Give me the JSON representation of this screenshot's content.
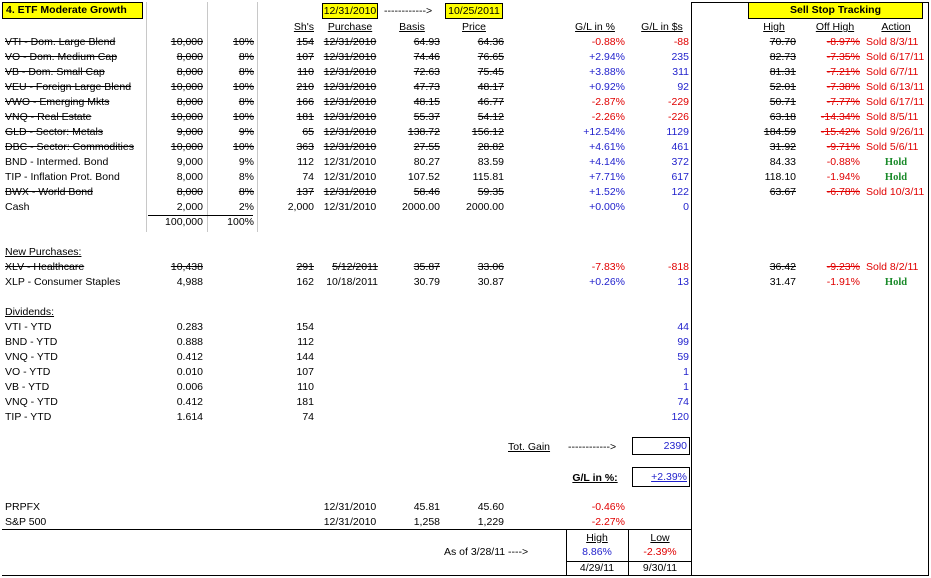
{
  "title": "4. ETF Moderate Growth",
  "start_date": "12/31/2010",
  "arrow": "------------>",
  "end_date": "10/25/2011",
  "sell_stop_title": "Sell Stop Tracking",
  "headers": {
    "shares": "Sh's",
    "purchase": "Purchase",
    "basis": "Basis",
    "price": "Price",
    "gl_pct": "G/L in %",
    "gl_usd": "G/L in $s",
    "high": "High",
    "off_high": "Off High",
    "action": "Action"
  },
  "holdings": [
    {
      "name": "VTI - Dom. Large Blend",
      "amount": "10,000",
      "pct": "10%",
      "shares": "154",
      "purchase": "12/31/2010",
      "basis": "64.93",
      "price": "64.36",
      "gl_pct": "-0.88%",
      "gl_usd": "-88",
      "high": "70.70",
      "off_high": "-8.97%",
      "action": "Sold 8/3/11",
      "struck": true
    },
    {
      "name": "VO - Dom. Medium Cap",
      "amount": "8,000",
      "pct": "8%",
      "shares": "107",
      "purchase": "12/31/2010",
      "basis": "74.46",
      "price": "76.65",
      "gl_pct": "+2.94%",
      "gl_usd": "235",
      "high": "82.73",
      "off_high": "-7.35%",
      "action": "Sold 6/17/11",
      "struck": true
    },
    {
      "name": "VB - Dom. Small Cap",
      "amount": "8,000",
      "pct": "8%",
      "shares": "110",
      "purchase": "12/31/2010",
      "basis": "72.63",
      "price": "75.45",
      "gl_pct": "+3.88%",
      "gl_usd": "311",
      "high": "81.31",
      "off_high": "-7.21%",
      "action": "Sold 6/7/11",
      "struck": true
    },
    {
      "name": "VEU - Foreign Large Blend",
      "amount": "10,000",
      "pct": "10%",
      "shares": "210",
      "purchase": "12/31/2010",
      "basis": "47.73",
      "price": "48.17",
      "gl_pct": "+0.92%",
      "gl_usd": "92",
      "high": "52.01",
      "off_high": "-7.38%",
      "action": "Sold 6/13/11",
      "struck": true
    },
    {
      "name": "VWO - Emerging Mkts",
      "amount": "8,000",
      "pct": "8%",
      "shares": "166",
      "purchase": "12/31/2010",
      "basis": "48.15",
      "price": "46.77",
      "gl_pct": "-2.87%",
      "gl_usd": "-229",
      "high": "50.71",
      "off_high": "-7.77%",
      "action": "Sold 6/17/11",
      "struck": true
    },
    {
      "name": "VNQ - Real Estate",
      "amount": "10,000",
      "pct": "10%",
      "shares": "181",
      "purchase": "12/31/2010",
      "basis": "55.37",
      "price": "54.12",
      "gl_pct": "-2.26%",
      "gl_usd": "-226",
      "high": "63.18",
      "off_high": "-14.34%",
      "action": "Sold 8/5/11",
      "struck": true
    },
    {
      "name": "GLD - Sector: Metals",
      "amount": "9,000",
      "pct": "9%",
      "shares": "65",
      "purchase": "12/31/2010",
      "basis": "138.72",
      "price": "156.12",
      "gl_pct": "+12.54%",
      "gl_usd": "1129",
      "high": "184.59",
      "off_high": "-15.42%",
      "action": "Sold 9/26/11",
      "struck": true
    },
    {
      "name": "DBC - Sector: Commodities",
      "amount": "10,000",
      "pct": "10%",
      "shares": "363",
      "purchase": "12/31/2010",
      "basis": "27.55",
      "price": "28.82",
      "gl_pct": "+4.61%",
      "gl_usd": "461",
      "high": "31.92",
      "off_high": "-9.71%",
      "action": "Sold 5/6/11",
      "struck": true
    },
    {
      "name": "BND - Intermed. Bond",
      "amount": "9,000",
      "pct": "9%",
      "shares": "112",
      "purchase": "12/31/2010",
      "basis": "80.27",
      "price": "83.59",
      "gl_pct": "+4.14%",
      "gl_usd": "372",
      "high": "84.33",
      "off_high": "-0.88%",
      "action": "Hold",
      "struck": false
    },
    {
      "name": "TIP - Inflation Prot. Bond",
      "amount": "8,000",
      "pct": "8%",
      "shares": "74",
      "purchase": "12/31/2010",
      "basis": "107.52",
      "price": "115.81",
      "gl_pct": "+7.71%",
      "gl_usd": "617",
      "high": "118.10",
      "off_high": "-1.94%",
      "action": "Hold",
      "struck": false
    },
    {
      "name": "BWX - World Bond",
      "amount": "8,000",
      "pct": "8%",
      "shares": "137",
      "purchase": "12/31/2010",
      "basis": "58.46",
      "price": "59.35",
      "gl_pct": "+1.52%",
      "gl_usd": "122",
      "high": "63.67",
      "off_high": "-6.78%",
      "action": "Sold 10/3/11",
      "struck": true
    },
    {
      "name": "Cash",
      "amount": "2,000",
      "pct": "2%",
      "shares": "2,000",
      "purchase": "12/31/2010",
      "basis": "2000.00",
      "price": "2000.00",
      "gl_pct": "+0.00%",
      "gl_usd": "0",
      "high": "",
      "off_high": "",
      "action": "",
      "struck": false
    }
  ],
  "totals": {
    "amount": "100,000",
    "pct": "100%"
  },
  "new_purchases_label": "New Purchases:",
  "new_purchases": [
    {
      "name": "XLV - Healthcare",
      "amount": "10,438",
      "shares": "291",
      "purchase": "5/12/2011",
      "basis": "35.87",
      "price": "33.06",
      "gl_pct": "-7.83%",
      "gl_usd": "-818",
      "high": "36.42",
      "off_high": "-9.23%",
      "action": "Sold 8/2/11",
      "struck": true
    },
    {
      "name": "XLP - Consumer Staples",
      "amount": "4,988",
      "shares": "162",
      "purchase": "10/18/2011",
      "basis": "30.79",
      "price": "30.87",
      "gl_pct": "+0.26%",
      "gl_usd": "13",
      "high": "31.47",
      "off_high": "-1.91%",
      "action": "Hold",
      "struck": false
    }
  ],
  "dividends_label": "Dividends:",
  "dividends": [
    {
      "name": "VTI - YTD",
      "amount": "0.283",
      "shares": "154",
      "usd": "44"
    },
    {
      "name": "BND - YTD",
      "amount": "0.888",
      "shares": "112",
      "usd": "99"
    },
    {
      "name": "VNQ - YTD",
      "amount": "0.412",
      "shares": "144",
      "usd": "59"
    },
    {
      "name": "VO - YTD",
      "amount": "0.010",
      "shares": "107",
      "usd": "1"
    },
    {
      "name": "VB - YTD",
      "amount": "0.006",
      "shares": "110",
      "usd": "1"
    },
    {
      "name": "VNQ - YTD",
      "amount": "0.412",
      "shares": "181",
      "usd": "74"
    },
    {
      "name": "TIP - YTD",
      "amount": "1.614",
      "shares": "74",
      "usd": "120"
    }
  ],
  "total_gain": {
    "label": "Tot. Gain",
    "arrow": "------------>",
    "value": "2390"
  },
  "gl_in_pct": {
    "label": "G/L in %:",
    "value": "+2.39%"
  },
  "benchmarks": [
    {
      "name": "PRPFX",
      "date": "12/31/2010",
      "basis": "45.81",
      "price": "45.60",
      "gl_pct": "-0.46%"
    },
    {
      "name": "S&P 500",
      "date": "12/31/2010",
      "basis": "1,258",
      "price": "1,229",
      "gl_pct": "-2.27%"
    }
  ],
  "high_low": {
    "as_of": "As of 3/28/11 ---->",
    "high_label": "High",
    "low_label": "Low",
    "high_value": "8.86%",
    "low_value": "-2.39%",
    "high_date": "4/29/11",
    "low_date": "9/30/11"
  },
  "colors": {
    "header_yellow": "#ffff00",
    "positive": "#1f1fcc",
    "negative": "#e00000",
    "hold": "#1a8a2a"
  }
}
